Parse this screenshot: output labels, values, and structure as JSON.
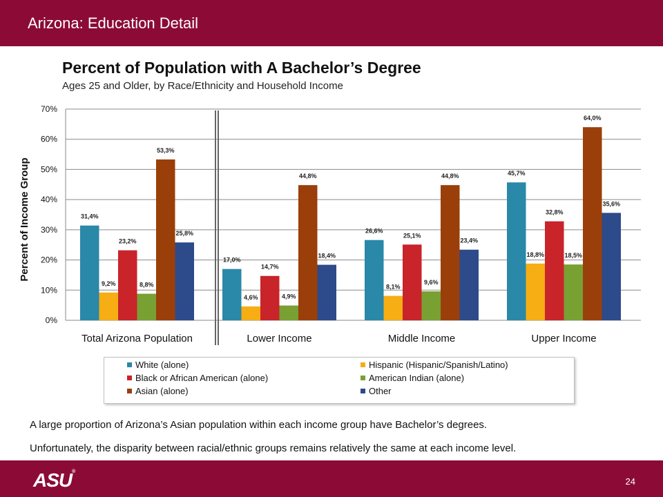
{
  "header": {
    "title": "Arizona: Education Detail"
  },
  "notes": [
    "A large proportion of Arizona’s Asian population within each income group have Bachelor’s degrees.",
    "Unfortunately, the disparity between racial/ethnic groups remains relatively the same at each income level."
  ],
  "footer": {
    "logo_text": "ASU",
    "logo_mark": "®",
    "page_number": "24"
  },
  "chart_data": {
    "type": "bar",
    "title": "Percent of Population with A Bachelor’s Degree",
    "subtitle": "Ages 25 and Older, by Race/Ethnicity and Household Income",
    "ylabel": "Percent of Income Group",
    "xlabel": "",
    "ylim": [
      0,
      70
    ],
    "yticks": [
      "0%",
      "10%",
      "20%",
      "30%",
      "40%",
      "50%",
      "60%",
      "70%"
    ],
    "grid": true,
    "legend_position": "bottom",
    "categories": [
      "Total Arizona Population",
      "Lower Income",
      "Middle Income",
      "Upper Income"
    ],
    "series": [
      {
        "name": "White (alone)",
        "color": "#2a88a8",
        "values": [
          31.4,
          17.0,
          26.6,
          45.7
        ],
        "labels": [
          "31,4%",
          "17,0%",
          "26,6%",
          "45,7%"
        ]
      },
      {
        "name": "Hispanic (Hispanic/Spanish/Latino)",
        "color": "#f7ad14",
        "values": [
          9.2,
          4.6,
          8.1,
          18.8
        ],
        "labels": [
          "9,2%",
          "4,6%",
          "8,1%",
          "18,8%"
        ]
      },
      {
        "name": "Black or African American (alone)",
        "color": "#c8242a",
        "values": [
          23.2,
          14.7,
          25.1,
          32.8
        ],
        "labels": [
          "23,2%",
          "14,7%",
          "25,1%",
          "32,8%"
        ]
      },
      {
        "name": "American Indian (alone)",
        "color": "#79a032",
        "values": [
          8.8,
          4.9,
          9.6,
          18.5
        ],
        "labels": [
          "8,8%",
          "4,9%",
          "9,6%",
          "18,5%"
        ]
      },
      {
        "name": "Asian (alone)",
        "color": "#9a3f0a",
        "values": [
          53.3,
          44.8,
          44.8,
          64.0
        ],
        "labels": [
          "53,3%",
          "44,8%",
          "44,8%",
          "64,0%"
        ]
      },
      {
        "name": "Other",
        "color": "#2d4a8a",
        "values": [
          25.8,
          18.4,
          23.4,
          35.6
        ],
        "labels": [
          "25,8%",
          "18,4%",
          "23,4%",
          "35,6%"
        ]
      }
    ]
  }
}
